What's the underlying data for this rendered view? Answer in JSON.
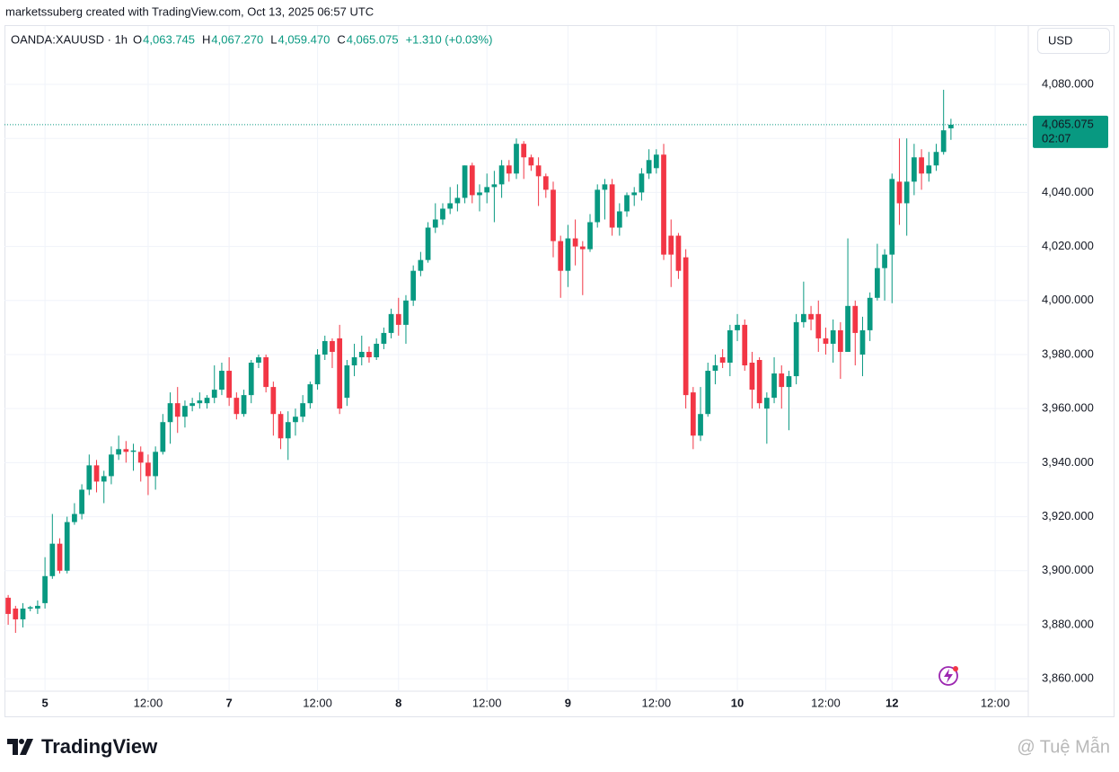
{
  "chart_data": {
    "type": "candlestick",
    "credit": "marketssuberg created with TradingView.com, Oct 13, 2025 06:57 UTC",
    "symbol": "OANDA:XAUUSD · 1h",
    "ohlc_legend": [
      {
        "key": "O",
        "value": "4,063.745"
      },
      {
        "key": "H",
        "value": "4,067.270"
      },
      {
        "key": "L",
        "value": "4,059.470"
      },
      {
        "key": "C",
        "value": "4,065.075"
      }
    ],
    "change": "+1.310 (+0.03%)",
    "currency": "USD",
    "last_price": {
      "value": 4065.075,
      "label": "4,065.075"
    },
    "countdown": "02:07",
    "brand": "TradingView",
    "watermark": "@ Tuệ Mẫn",
    "up_color": "#089981",
    "down_color": "#f23645",
    "grid": true,
    "ylim": [
      3855.4,
      4101.6
    ],
    "yticks": [
      {
        "value": 3860,
        "label": "3,860.000"
      },
      {
        "value": 3880,
        "label": "3,880.000"
      },
      {
        "value": 3900,
        "label": "3,900.000"
      },
      {
        "value": 3920,
        "label": "3,920.000"
      },
      {
        "value": 3940,
        "label": "3,940.000"
      },
      {
        "value": 3960,
        "label": "3,960.000"
      },
      {
        "value": 3980,
        "label": "3,980.000"
      },
      {
        "value": 4000,
        "label": "4,000.000"
      },
      {
        "value": 4020,
        "label": "4,020.000"
      },
      {
        "value": 4040,
        "label": "4,040.000"
      },
      {
        "value": 4060,
        "label": "4,060.000"
      },
      {
        "value": 4080,
        "label": "4,080.000"
      }
    ],
    "categories": [
      null,
      null,
      null,
      null,
      null,
      "5",
      null,
      null,
      null,
      null,
      null,
      null,
      null,
      null,
      null,
      null,
      null,
      null,
      null,
      "12:00",
      null,
      null,
      null,
      null,
      null,
      null,
      null,
      null,
      null,
      null,
      "7",
      null,
      null,
      null,
      null,
      null,
      null,
      null,
      null,
      null,
      null,
      null,
      "12:00",
      null,
      null,
      null,
      null,
      null,
      null,
      null,
      null,
      null,
      null,
      "8",
      null,
      null,
      null,
      null,
      null,
      null,
      null,
      null,
      null,
      null,
      null,
      "12:00",
      null,
      null,
      null,
      null,
      null,
      null,
      null,
      null,
      null,
      null,
      "9",
      null,
      null,
      null,
      null,
      null,
      null,
      null,
      null,
      null,
      null,
      null,
      "12:00",
      null,
      null,
      null,
      null,
      null,
      null,
      null,
      null,
      null,
      null,
      "10",
      null,
      null,
      null,
      null,
      null,
      null,
      null,
      null,
      null,
      null,
      null,
      "12:00",
      null,
      null,
      null,
      null,
      null,
      null,
      null,
      null,
      "12",
      null,
      null,
      null,
      null,
      null,
      null,
      null,
      null,
      null,
      null,
      null,
      null,
      null,
      "12:00",
      null,
      null,
      null,
      null
    ],
    "open": [
      3890,
      3886,
      3882,
      3886,
      3886,
      3888,
      3898,
      3910,
      3900,
      3918,
      3921,
      3930,
      3939,
      3933,
      3935,
      3943,
      3945,
      3944,
      3944,
      3940,
      3935,
      3944,
      3955,
      3962,
      3957,
      3961,
      3962,
      3962,
      3964,
      3967,
      3974,
      3964,
      3958,
      3965,
      3977,
      3979,
      3968,
      3958,
      3949,
      3955,
      3957,
      3962,
      3969,
      3980,
      3985,
      3986,
      3964,
      3976,
      3979,
      3981,
      3979,
      3984,
      3988,
      3995,
      3991,
      4000,
      4011,
      4015,
      4027,
      4030,
      4034,
      4036,
      4038,
      4050,
      4039,
      4040,
      4042,
      4043,
      4050,
      4047,
      4058,
      4053,
      4050,
      4046,
      4041,
      4022,
      4011,
      4023,
      4020,
      4019,
      4029,
      4041,
      4043,
      4027,
      4033,
      4039,
      4040,
      4047,
      4049,
      4054,
      4024,
      4024,
      4016,
      3966,
      3950,
      3958,
      3974,
      3979,
      3977,
      3989,
      3991,
      3977,
      3978,
      3960,
      3964,
      3973,
      3968,
      3972,
      3992,
      3995,
      3995,
      3986,
      3984,
      3989,
      3981,
      3998,
      3980,
      3989,
      4001,
      4012,
      4017,
      4044,
      4036,
      4044,
      4053,
      4047,
      4050,
      4055,
      4063.745,
      null,
      null,
      null,
      null,
      null,
      null,
      null,
      null,
      null,
      null
    ],
    "high": [
      3891,
      3887,
      3888,
      3887,
      3889,
      3905,
      3921,
      3912,
      3920,
      3925,
      3932,
      3943,
      3941,
      3937,
      3946,
      3950,
      3948,
      3947,
      3946,
      3943,
      3946,
      3958,
      3966,
      3968,
      3963,
      3964,
      3966,
      3965,
      3976,
      3977,
      3979,
      3966,
      3967,
      3978,
      3980,
      3980,
      3970,
      3959,
      3959,
      3960,
      3965,
      3970,
      3982,
      3987,
      3986,
      3991,
      3978,
      3984,
      3987,
      3983,
      3986,
      3990,
      3997,
      4001,
      4002,
      4013,
      4018,
      4029,
      4036,
      4036,
      4042,
      4043,
      4050,
      4051,
      4043,
      4047,
      4048,
      4052,
      4052,
      4060,
      4059,
      4054,
      4053,
      4047,
      4044,
      4024,
      4028,
      4030,
      4022,
      4032,
      4043,
      4045,
      4045,
      4036,
      4040,
      4042,
      4049,
      4056,
      4056,
      4058,
      4030,
      4025,
      4019,
      3968,
      3968,
      3977,
      3980,
      3982,
      3991,
      3995,
      3993,
      3981,
      3979,
      3966,
      3979,
      3976,
      3974,
      3995,
      4007,
      3998,
      4000,
      3990,
      3993,
      3992,
      4023,
      4000,
      3994,
      4003,
      4021,
      4019,
      4047,
      4060,
      4060,
      4058,
      4056,
      4055,
      4058,
      4078,
      4067.27,
      null,
      null,
      null,
      null,
      null,
      null,
      null,
      null,
      null,
      null
    ],
    "low": [
      3880,
      3877,
      3879,
      3885,
      3884,
      3886,
      3897,
      3899,
      3899,
      3917,
      3919,
      3928,
      3929,
      3925,
      3932,
      3941,
      3940,
      3937,
      3933,
      3928,
      3930,
      3943,
      3947,
      3951,
      3953,
      3959,
      3960,
      3960,
      3962,
      3965,
      3961,
      3956,
      3957,
      3962,
      3975,
      3966,
      3950,
      3945,
      3941,
      3950,
      3955,
      3960,
      3967,
      3978,
      3975,
      3958,
      3961,
      3972,
      3976,
      3977,
      3978,
      3982,
      3986,
      3987,
      3984,
      3998,
      4009,
      4014,
      4025,
      4028,
      4032,
      4033,
      4036,
      4036,
      4033,
      4036,
      4029,
      4038,
      4044,
      4045,
      4045,
      4048,
      4035,
      4038,
      4016,
      4001,
      4005,
      4013,
      4002,
      4018,
      4027,
      4030,
      4024,
      4024,
      4031,
      4035,
      4037,
      4045,
      4047,
      4015,
      4005,
      4008,
      3960,
      3945,
      3948,
      3957,
      3969,
      3975,
      3972,
      3985,
      3974,
      3960,
      3960,
      3947,
      3962,
      3960,
      3952,
      3969,
      3990,
      3989,
      3981,
      3980,
      3977,
      3971,
      3981,
      3976,
      3972,
      3985,
      4000,
      4000,
      3999,
      4028,
      4024,
      4039,
      4041,
      4044,
      4048,
      4054,
      4059.47,
      null,
      null,
      null,
      null,
      null,
      null,
      null,
      null,
      null,
      null
    ],
    "close": [
      3884,
      3882,
      3886,
      3886.5,
      3887,
      3898,
      3910,
      3900,
      3918,
      3921,
      3930,
      3939,
      3933,
      3935,
      3943,
      3945,
      3944,
      3944.5,
      3940,
      3935,
      3944,
      3955,
      3962,
      3957,
      3961,
      3962,
      3963,
      3964,
      3967,
      3974,
      3964,
      3958,
      3965,
      3977,
      3979,
      3968,
      3958,
      3949,
      3955,
      3957,
      3962,
      3969,
      3980,
      3985,
      3981,
      3960,
      3976,
      3979,
      3981,
      3979,
      3984,
      3988,
      3995,
      3991,
      4000,
      4011,
      4015,
      4027,
      4030,
      4034,
      4036,
      4038,
      4050,
      4039,
      4040,
      4042,
      4043,
      4050,
      4047,
      4058,
      4053,
      4050,
      4046,
      4041,
      4022,
      4011,
      4023,
      4020,
      4019,
      4029,
      4041,
      4043,
      4027,
      4033,
      4039,
      4040,
      4047,
      4052,
      4054,
      4017,
      4017,
      4011,
      3965,
      3950,
      3958,
      3974,
      3976,
      3977,
      3989,
      3991,
      3976,
      3967,
      3962,
      3964,
      3973,
      3968,
      3972,
      3992,
      3995,
      3993,
      3986,
      3984,
      3989,
      3981,
      3998,
      3988,
      3989,
      4001,
      4012,
      4017,
      4045,
      4036,
      4044,
      4053,
      4047,
      4050,
      4055,
      4063,
      4065.075,
      null,
      null,
      null,
      null,
      null,
      null,
      null,
      null,
      null,
      null
    ]
  }
}
